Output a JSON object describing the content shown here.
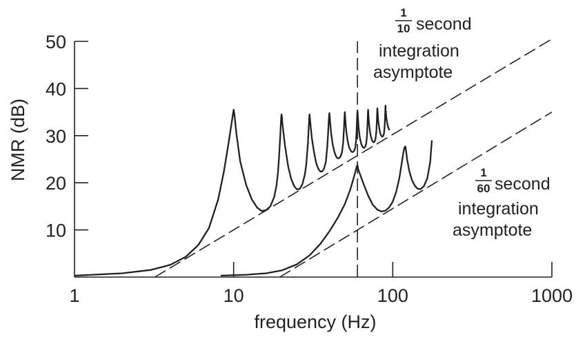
{
  "chart_data": {
    "type": "line",
    "xscale": "log",
    "xlim": [
      1,
      1000
    ],
    "ylim": [
      0,
      50
    ],
    "xlabel": "frequency (Hz)",
    "ylabel": "NMR (dB)",
    "x_tick_labels": [
      "1",
      "10",
      "100",
      "1000"
    ],
    "x_ticks": [
      1,
      10,
      100,
      1000
    ],
    "y_tick_labels": [
      "10",
      "20",
      "30",
      "40",
      "50"
    ],
    "y_ticks": [
      10,
      20,
      30,
      40,
      50
    ],
    "vertical_marker": {
      "x": 60,
      "style": "dashed"
    },
    "asymptotes": [
      {
        "name": "1/10 second integration asymptote",
        "x_start": 3.2,
        "y_start": 0,
        "x_end": 1000,
        "y_end": 50.5
      },
      {
        "name": "1/60 second integration asymptote",
        "x_start": 19.5,
        "y_start": 0,
        "x_end": 1000,
        "y_end": 35
      }
    ],
    "series": [
      {
        "name": "1/10 second integration",
        "note": "resonance peaks at multiples of 10 Hz, dips approach the 1/10 s asymptote",
        "x": [
          1,
          2,
          3,
          4,
          5,
          6,
          7,
          8,
          8.7,
          9.3,
          9.6,
          9.8,
          9.9,
          10,
          10.1,
          10.2,
          10.4,
          11,
          12,
          13,
          14,
          15,
          16,
          17,
          18,
          18.6,
          19,
          19.3,
          19.6,
          19.8,
          19.9,
          20,
          20.1,
          20.3,
          21,
          22,
          23,
          24,
          25,
          26,
          27,
          28,
          28.6,
          29.3,
          29.6,
          29.8,
          29.9,
          30,
          30.2,
          31,
          32,
          33,
          34,
          35,
          36,
          37,
          38,
          38.8,
          39.3,
          39.6,
          39.8,
          39.9,
          40,
          40.3,
          41,
          42,
          43,
          44,
          45,
          46,
          47,
          48,
          48.8,
          49.3,
          49.6,
          49.8,
          49.9,
          50,
          50.3,
          51,
          52,
          53,
          54,
          55,
          56,
          57,
          58,
          58.8,
          59.3,
          59.6,
          59.8,
          59.9,
          60,
          60.3,
          61,
          62,
          63,
          64,
          65,
          66,
          67,
          68,
          68.8,
          69.3,
          69.6,
          69.8,
          69.9,
          70,
          70.3,
          71,
          72,
          73,
          74,
          75,
          76,
          77,
          78,
          78.8,
          79.3,
          79.6,
          79.8,
          79.9,
          80,
          80.3,
          81,
          82,
          83,
          84,
          85,
          86,
          87,
          88,
          88.8,
          89.3,
          89.6,
          89.8,
          89.9,
          90,
          90.3,
          91,
          92,
          93,
          94,
          95,
          95.8
        ],
        "y": [
          0.3,
          0.8,
          1.5,
          2.6,
          4.3,
          6.8,
          10.4,
          16.5,
          22.5,
          28.5,
          31.6,
          33.5,
          34.6,
          35.5,
          34.6,
          33.2,
          30.5,
          24.5,
          19.5,
          16.5,
          14.8,
          14.0,
          14.2,
          15.0,
          17.0,
          19.4,
          22.3,
          25.5,
          29.5,
          32.5,
          34.0,
          34.5,
          34.0,
          32.3,
          28.0,
          23.5,
          20.8,
          19.3,
          18.6,
          18.7,
          19.6,
          21.7,
          23.8,
          28.5,
          31.5,
          33.3,
          34.2,
          34.5,
          33.4,
          29.5,
          26.5,
          24.2,
          23.0,
          22.4,
          22.4,
          23.0,
          24.5,
          27.8,
          31.0,
          33.0,
          34.2,
          34.6,
          34.8,
          33.3,
          30.5,
          28.0,
          26.5,
          25.6,
          25.2,
          25.2,
          25.6,
          26.5,
          28.6,
          31.2,
          33.1,
          34.3,
          34.8,
          35.0,
          33.6,
          31.0,
          29.0,
          27.7,
          27.0,
          26.6,
          26.5,
          26.7,
          27.3,
          28.8,
          31.4,
          33.3,
          34.5,
          35.0,
          35.3,
          34.2,
          31.8,
          29.8,
          28.6,
          27.9,
          27.5,
          27.4,
          27.6,
          28.2,
          29.8,
          32.0,
          33.6,
          34.7,
          35.2,
          35.5,
          34.5,
          32.5,
          30.8,
          29.7,
          29.0,
          28.7,
          28.6,
          28.8,
          29.4,
          30.8,
          32.6,
          34.0,
          35.0,
          35.5,
          35.8,
          35.0,
          33.3,
          31.8,
          30.8,
          30.2,
          29.9,
          29.8,
          29.9,
          30.4,
          31.6,
          33.2,
          34.6,
          35.6,
          36.1,
          36.4,
          35.5,
          34.0,
          32.9,
          32.1,
          31.6,
          31.3,
          31.2
        ]
      },
      {
        "name": "1/60 second integration",
        "note": "resonance peaks at multiples of 60 Hz, dips approach the 1/60 s asymptote",
        "x": [
          8.3,
          12,
          16,
          20,
          25,
          30,
          35,
          40,
          45,
          50,
          54,
          57,
          58.5,
          59.3,
          60,
          60.5,
          62,
          66,
          70,
          75,
          80,
          85,
          90,
          95,
          100,
          105,
          110,
          114,
          116.5,
          118,
          119,
          120,
          121,
          123,
          127,
          132,
          138,
          144,
          150,
          157,
          165,
          172,
          176
        ],
        "y": [
          0.3,
          0.5,
          0.8,
          1.4,
          2.7,
          4.6,
          7.0,
          9.7,
          12.5,
          15.5,
          18.5,
          21.2,
          22.6,
          23.4,
          23.8,
          23.0,
          22.0,
          19.5,
          17.3,
          15.3,
          14.3,
          13.9,
          14.1,
          14.8,
          16.0,
          18.0,
          21.0,
          24.3,
          26.3,
          27.3,
          27.6,
          27.7,
          27.0,
          25.0,
          22.5,
          20.6,
          19.3,
          18.7,
          18.7,
          19.3,
          21.0,
          24.5,
          29.0
        ]
      }
    ],
    "annotations": [
      {
        "fraction_numerator": "1",
        "fraction_denominator": "10",
        "lines": [
          "second",
          "integration",
          "asymptote"
        ]
      },
      {
        "fraction_numerator": "1",
        "fraction_denominator": "60",
        "lines": [
          "second",
          "integration",
          "asymptote"
        ]
      }
    ]
  }
}
